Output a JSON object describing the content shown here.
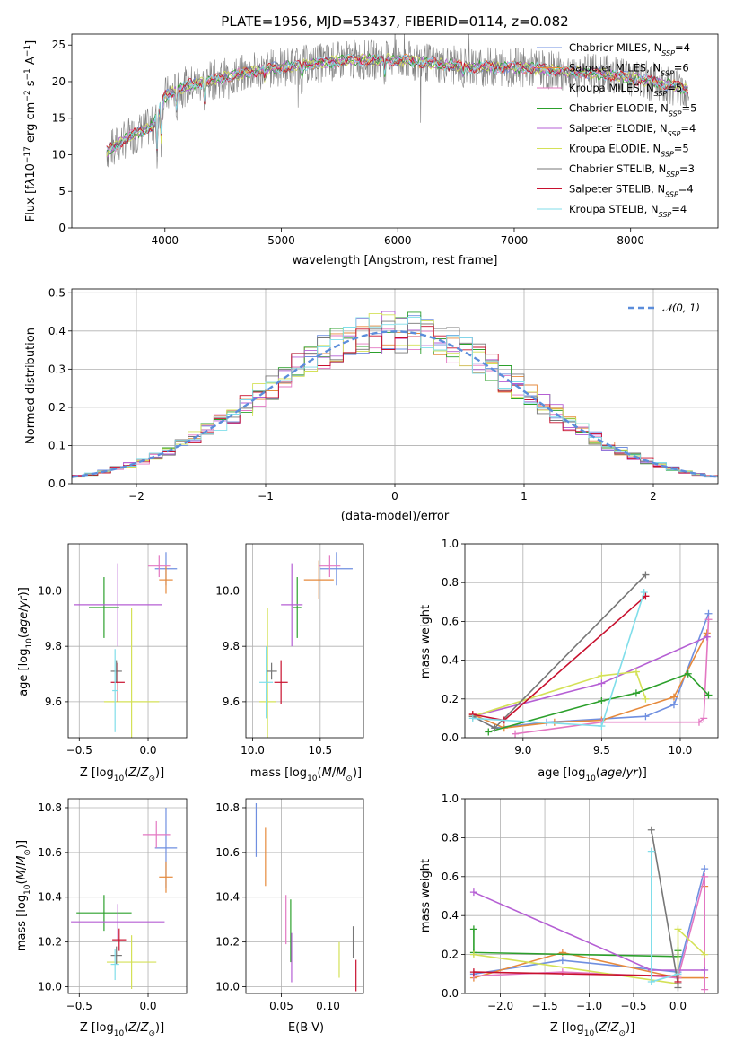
{
  "colors": {
    "series": [
      "#6f8fe0",
      "#e68a3c",
      "#e377c2",
      "#2ca02c",
      "#b55fd4",
      "#d4e157",
      "#777777",
      "#c8102e",
      "#80deea"
    ],
    "normal": "#5b8ddb"
  },
  "chart_data": [
    {
      "type": "line",
      "title": "PLATE=1956, MJD=53437, FIBERID=0114, z=0.082",
      "xlabel": "wavelength [Angstrom, rest frame]",
      "ylabel": "Flux [f",
      "xlim": [
        3200,
        8750
      ],
      "ylim": [
        0,
        26.5
      ],
      "xticks": [
        "4000",
        "5000",
        "6000",
        "7000",
        "8000"
      ],
      "yticks": [
        "0",
        "5",
        "10",
        "15",
        "20",
        "25"
      ],
      "legend_position": "top-right",
      "legend": [
        {
          "model": "Chabrier MILES",
          "n": "4"
        },
        {
          "model": "Salpeter MILES",
          "n": "6"
        },
        {
          "model": "Kroupa MILES",
          "n": "5"
        },
        {
          "model": "Chabrier ELODIE",
          "n": "5"
        },
        {
          "model": "Salpeter ELODIE",
          "n": "4"
        },
        {
          "model": "Kroupa ELODIE",
          "n": "5"
        },
        {
          "model": "Chabrier STELIB",
          "n": "3"
        },
        {
          "model": "Salpeter STELIB",
          "n": "4"
        },
        {
          "model": "Kroupa STELIB",
          "n": "4"
        }
      ],
      "continuum_x": [
        3500,
        3700,
        3900,
        4000,
        4200,
        4500,
        4800,
        5000,
        5300,
        5600,
        6000,
        6300,
        6600,
        7000,
        7400,
        7800,
        8200,
        8500
      ],
      "continuum_y": [
        10.5,
        12.5,
        14,
        18,
        19.5,
        20.5,
        21.5,
        22,
        22.5,
        23,
        23,
        22.5,
        22,
        22,
        21.5,
        21,
        20,
        19
      ]
    },
    {
      "type": "bar",
      "xlabel": "(data-model)/error",
      "ylabel": "Normed distribution",
      "xlim": [
        -2.5,
        2.5
      ],
      "ylim": [
        0,
        0.51
      ],
      "xticks": [
        "−2",
        "−1",
        "0",
        "1",
        "2"
      ],
      "yticks": [
        "0.0",
        "0.1",
        "0.2",
        "0.3",
        "0.4",
        "0.5"
      ],
      "legend": "𝒩(0, 1)",
      "bin_width": 0.1
    },
    {
      "type": "scatter",
      "xlabel": "Z [log",
      "ylabel": "age  [log",
      "xlim": [
        -0.58,
        0.28
      ],
      "ylim": [
        9.47,
        10.17
      ],
      "xticks": [
        "−0.5",
        "0.0"
      ],
      "yticks": [
        "9.6",
        "9.8",
        "10.0"
      ],
      "points": [
        {
          "x": 0.13,
          "y": 10.08,
          "xerr": 0.08,
          "yerr": 0.06
        },
        {
          "x": 0.13,
          "y": 10.04,
          "xerr": 0.05,
          "yerr": 0.05
        },
        {
          "x": 0.08,
          "y": 10.09,
          "xerr": 0.08,
          "yerr": 0.04
        },
        {
          "x": -0.32,
          "y": 9.94,
          "xerr": 0.11,
          "yerr": 0.11
        },
        {
          "x": -0.22,
          "y": 9.95,
          "xerr": 0.32,
          "yerr": 0.15
        },
        {
          "x": -0.12,
          "y": 9.6,
          "xerr": 0.2,
          "yerr": 0.34
        },
        {
          "x": -0.23,
          "y": 9.71,
          "xerr": 0.04,
          "yerr": 0.04
        },
        {
          "x": -0.22,
          "y": 9.67,
          "xerr": 0.05,
          "yerr": 0.07
        },
        {
          "x": -0.24,
          "y": 9.64,
          "xerr": 0.02,
          "yerr": 0.15
        }
      ]
    },
    {
      "type": "scatter",
      "xlabel": "mass [log",
      "ylabel": "",
      "xlim": [
        9.95,
        10.82
      ],
      "ylim": [
        9.47,
        10.17
      ],
      "xticks": [
        "10.0",
        "10.5"
      ],
      "yticks": [
        "9.6",
        "9.8",
        "10.0"
      ],
      "points": [
        {
          "x": 10.62,
          "y": 10.08,
          "xerr": 0.12,
          "yerr": 0.06
        },
        {
          "x": 10.49,
          "y": 10.04,
          "xerr": 0.11,
          "yerr": 0.07
        },
        {
          "x": 10.57,
          "y": 10.09,
          "xerr": 0.08,
          "yerr": 0.04
        },
        {
          "x": 10.33,
          "y": 9.94,
          "xerr": 0.03,
          "yerr": 0.11
        },
        {
          "x": 10.29,
          "y": 9.95,
          "xerr": 0.08,
          "yerr": 0.15
        },
        {
          "x": 10.11,
          "y": 9.6,
          "xerr": 0.06,
          "yerr": 0.34
        },
        {
          "x": 10.14,
          "y": 9.71,
          "xerr": 0.04,
          "yerr": 0.03
        },
        {
          "x": 10.21,
          "y": 9.67,
          "xerr": 0.05,
          "yerr": 0.08
        },
        {
          "x": 10.1,
          "y": 9.67,
          "xerr": 0.05,
          "yerr": 0.13
        }
      ]
    },
    {
      "type": "line",
      "xlabel": "age  [log",
      "ylabel": "mass weight",
      "xlim": [
        8.63,
        10.24
      ],
      "ylim": [
        0,
        1
      ],
      "xticks": [
        "9.0",
        "9.5",
        "10.0"
      ],
      "yticks": [
        "0.0",
        "0.2",
        "0.4",
        "0.6",
        "0.8",
        "1.0"
      ],
      "series": [
        {
          "x": [
            8.68,
            8.82,
            9.15,
            9.78,
            9.96,
            10.18
          ],
          "y": [
            0.11,
            0.05,
            0.08,
            0.11,
            0.17,
            0.64
          ]
        },
        {
          "x": [
            8.68,
            8.88,
            9.2,
            9.5,
            9.96,
            10.17
          ],
          "y": [
            0.12,
            0.05,
            0.08,
            0.09,
            0.21,
            0.54
          ]
        },
        {
          "x": [
            8.95,
            9.5,
            10.12,
            10.15,
            10.18
          ],
          "y": [
            0.02,
            0.08,
            0.08,
            0.1,
            0.61
          ]
        },
        {
          "x": [
            8.78,
            9.5,
            9.72,
            10.05,
            10.18
          ],
          "y": [
            0.03,
            0.19,
            0.23,
            0.33,
            0.22
          ]
        },
        {
          "x": [
            8.68,
            9.5,
            10.17
          ],
          "y": [
            0.11,
            0.28,
            0.52
          ]
        },
        {
          "x": [
            8.68,
            9.5,
            9.72,
            9.78
          ],
          "y": [
            0.11,
            0.32,
            0.34,
            0.2
          ]
        },
        {
          "x": [
            8.68,
            8.82,
            9.78
          ],
          "y": [
            0.11,
            0.05,
            0.84
          ]
        },
        {
          "x": [
            8.68,
            8.88,
            9.78
          ],
          "y": [
            0.12,
            0.09,
            0.73
          ]
        },
        {
          "x": [
            8.68,
            9.5,
            9.77
          ],
          "y": [
            0.1,
            0.06,
            0.75
          ]
        }
      ]
    },
    {
      "type": "scatter",
      "xlabel": "Z [log",
      "ylabel": "mass [log",
      "xlim": [
        -0.58,
        0.28
      ],
      "ylim": [
        9.97,
        10.84
      ],
      "xticks": [
        "−0.5",
        "0.0"
      ],
      "yticks": [
        "10.0",
        "10.2",
        "10.4",
        "10.6",
        "10.8"
      ],
      "points": [
        {
          "x": 0.13,
          "y": 10.62,
          "xerr": 0.08,
          "yerr": 0.18
        },
        {
          "x": 0.13,
          "y": 10.49,
          "xerr": 0.05,
          "yerr": 0.07
        },
        {
          "x": 0.06,
          "y": 10.68,
          "xerr": 0.1,
          "yerr": 0.06
        },
        {
          "x": -0.32,
          "y": 10.33,
          "xerr": 0.2,
          "yerr": 0.08
        },
        {
          "x": -0.22,
          "y": 10.29,
          "xerr": 0.34,
          "yerr": 0.08
        },
        {
          "x": -0.12,
          "y": 10.11,
          "xerr": 0.18,
          "yerr": 0.12
        },
        {
          "x": -0.23,
          "y": 10.14,
          "xerr": 0.04,
          "yerr": 0.04
        },
        {
          "x": -0.21,
          "y": 10.21,
          "xerr": 0.05,
          "yerr": 0.05
        },
        {
          "x": -0.24,
          "y": 10.1,
          "xerr": 0.03,
          "yerr": 0.07
        }
      ]
    },
    {
      "type": "scatter",
      "xlabel": "E(B-V)",
      "ylabel": "",
      "xlim": [
        0.012,
        0.138
      ],
      "ylim": [
        9.97,
        10.84
      ],
      "xticks": [
        "0.05",
        "0.10"
      ],
      "yticks": [
        "10.0",
        "10.2",
        "10.4",
        "10.6",
        "10.8"
      ],
      "points": [
        {
          "x": 0.023,
          "y": 10.7,
          "yerr": 0.12
        },
        {
          "x": 0.033,
          "y": 10.58,
          "yerr": 0.13
        },
        {
          "x": 0.055,
          "y": 10.3,
          "yerr": 0.11
        },
        {
          "x": 0.06,
          "y": 10.25,
          "yerr": 0.14
        },
        {
          "x": 0.061,
          "y": 10.13,
          "yerr": 0.11
        },
        {
          "x": 0.112,
          "y": 10.12,
          "yerr": 0.08
        },
        {
          "x": 0.127,
          "y": 10.2,
          "yerr": 0.07
        },
        {
          "x": 0.13,
          "y": 10.05,
          "yerr": 0.07
        }
      ]
    },
    {
      "type": "line",
      "xlabel": "Z [log",
      "ylabel": "mass weight",
      "xlim": [
        -2.4,
        0.45
      ],
      "ylim": [
        0,
        1
      ],
      "xticks": [
        "−2.0",
        "−1.5",
        "−1.0",
        "−0.5",
        "0.0"
      ],
      "yticks": [
        "0.0",
        "0.2",
        "0.4",
        "0.6",
        "0.8",
        "1.0"
      ],
      "series": [
        {
          "x": [
            -2.3,
            -1.3,
            0.0,
            0.3
          ],
          "y": [
            0.1,
            0.17,
            0.11,
            0.64
          ]
        },
        {
          "x": [
            -2.3,
            -1.3,
            0.0,
            0.3,
            0.3
          ],
          "y": [
            0.08,
            0.21,
            0.08,
            0.08,
            0.55
          ]
        },
        {
          "x": [
            -2.3,
            -1.3,
            -0.3,
            0.0,
            0.3,
            0.3
          ],
          "y": [
            0.09,
            0.11,
            0.09,
            0.08,
            0.6,
            0.02
          ]
        },
        {
          "x": [
            -2.3,
            -2.3,
            0.0,
            0.0
          ],
          "y": [
            0.33,
            0.21,
            0.19,
            0.22
          ]
        },
        {
          "x": [
            -2.3,
            -0.3,
            0.3
          ],
          "y": [
            0.52,
            0.12,
            0.12
          ]
        },
        {
          "x": [
            -2.3,
            0.0,
            0.0,
            0.3
          ],
          "y": [
            0.2,
            0.05,
            0.33,
            0.2
          ]
        },
        {
          "x": [
            -0.3,
            0.0,
            0.0
          ],
          "y": [
            0.84,
            0.05,
            0.03
          ]
        },
        {
          "x": [
            -2.3,
            0.0,
            0.0
          ],
          "y": [
            0.11,
            0.09,
            0.06
          ]
        },
        {
          "x": [
            -0.3,
            -0.3,
            0.0
          ],
          "y": [
            0.73,
            0.06,
            0.1
          ]
        }
      ]
    }
  ]
}
